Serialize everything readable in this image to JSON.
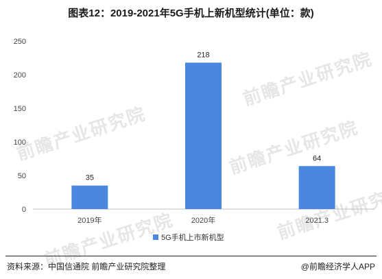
{
  "title": "图表12：2019-2021年5G手机上新机型统计(单位：款)",
  "source": "资料来源：中国信通院 前瞻产业研究院整理",
  "credit": "@前瞻经济学人APP",
  "watermark_text": "前瞻产业研究院",
  "chart_data": {
    "type": "bar",
    "title": "图表12：2019-2021年5G手机上新机型统计(单位：款)",
    "categories": [
      "2019年",
      "2020年",
      "2021.3"
    ],
    "series": [
      {
        "name": "5G手机上市新机型",
        "values": [
          35,
          218,
          64
        ],
        "color": "#4a88e0"
      }
    ],
    "ylim": [
      0,
      250
    ],
    "yticks": [
      0,
      50,
      100,
      150,
      200,
      250
    ],
    "grid": false,
    "legend": "bottom-center",
    "data_labels": true
  }
}
